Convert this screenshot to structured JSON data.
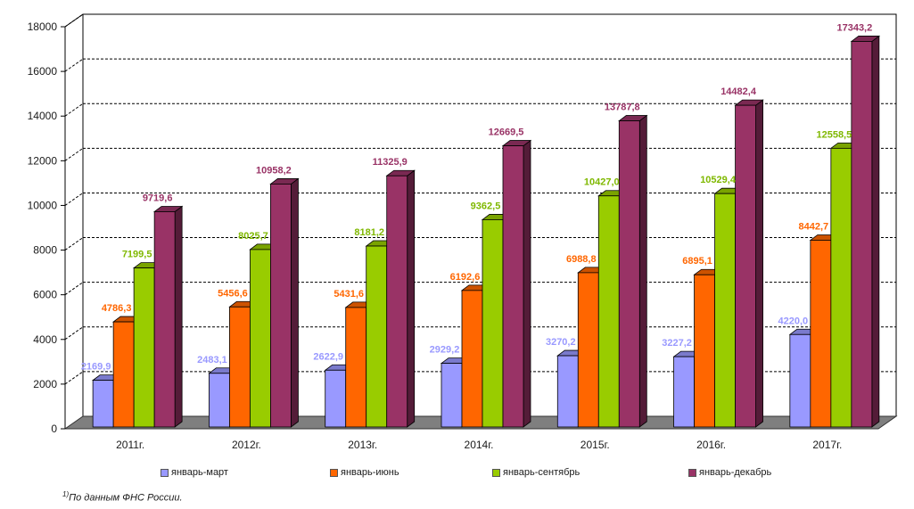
{
  "chart_data": {
    "type": "bar",
    "categories": [
      "2011г.",
      "2012г.",
      "2013г.",
      "2014г.",
      "2015г.",
      "2016г.",
      "2017г."
    ],
    "series": [
      {
        "name": "январь-март",
        "color": "#9999ff",
        "label_color": "#9999ff",
        "values": [
          2169.9,
          2483.1,
          2622.9,
          2929.2,
          3270.2,
          3227.2,
          4220.0
        ],
        "labels": [
          "2169,9",
          "2483,1",
          "2622,9",
          "2929,2",
          "3270,2",
          "3227,2",
          "4220,0"
        ]
      },
      {
        "name": "январь-июнь",
        "color": "#ff6600",
        "label_color": "#ff6600",
        "values": [
          4786.3,
          5456.6,
          5431.6,
          6192.6,
          6988.8,
          6895.1,
          8442.7
        ],
        "labels": [
          "4786,3",
          "5456,6",
          "5431,6",
          "6192,6",
          "6988,8",
          "6895,1",
          "8442,7"
        ]
      },
      {
        "name": "январь-сентябрь",
        "color": "#99cc00",
        "label_color": "#7fb800",
        "values": [
          7199.5,
          8025.7,
          8181.2,
          9362.5,
          10427.0,
          10529.4,
          12558.5
        ],
        "labels": [
          "7199,5",
          "8025,7",
          "8181,2",
          "9362,5",
          "10427,0",
          "10529,4",
          "12558,5"
        ]
      },
      {
        "name": "январь-декабрь",
        "color": "#993366",
        "label_color": "#993366",
        "values": [
          9719.6,
          10958.2,
          11325.9,
          12669.5,
          13787.8,
          14482.4,
          17343.2
        ],
        "labels": [
          "9719,6",
          "10958,2",
          "11325,9",
          "12669,5",
          "13787,8",
          "14482,4",
          "17343,2"
        ]
      }
    ],
    "y_ticks": [
      "0",
      "2000",
      "4000",
      "6000",
      "8000",
      "10000",
      "12000",
      "14000",
      "16000",
      "18000"
    ],
    "ylim": [
      0,
      18000
    ],
    "grid": true,
    "legend_position": "bottom",
    "title": "",
    "xlabel": "",
    "ylabel": ""
  },
  "footnote": {
    "marker": "1)",
    "text": "По данным ФНС России."
  }
}
